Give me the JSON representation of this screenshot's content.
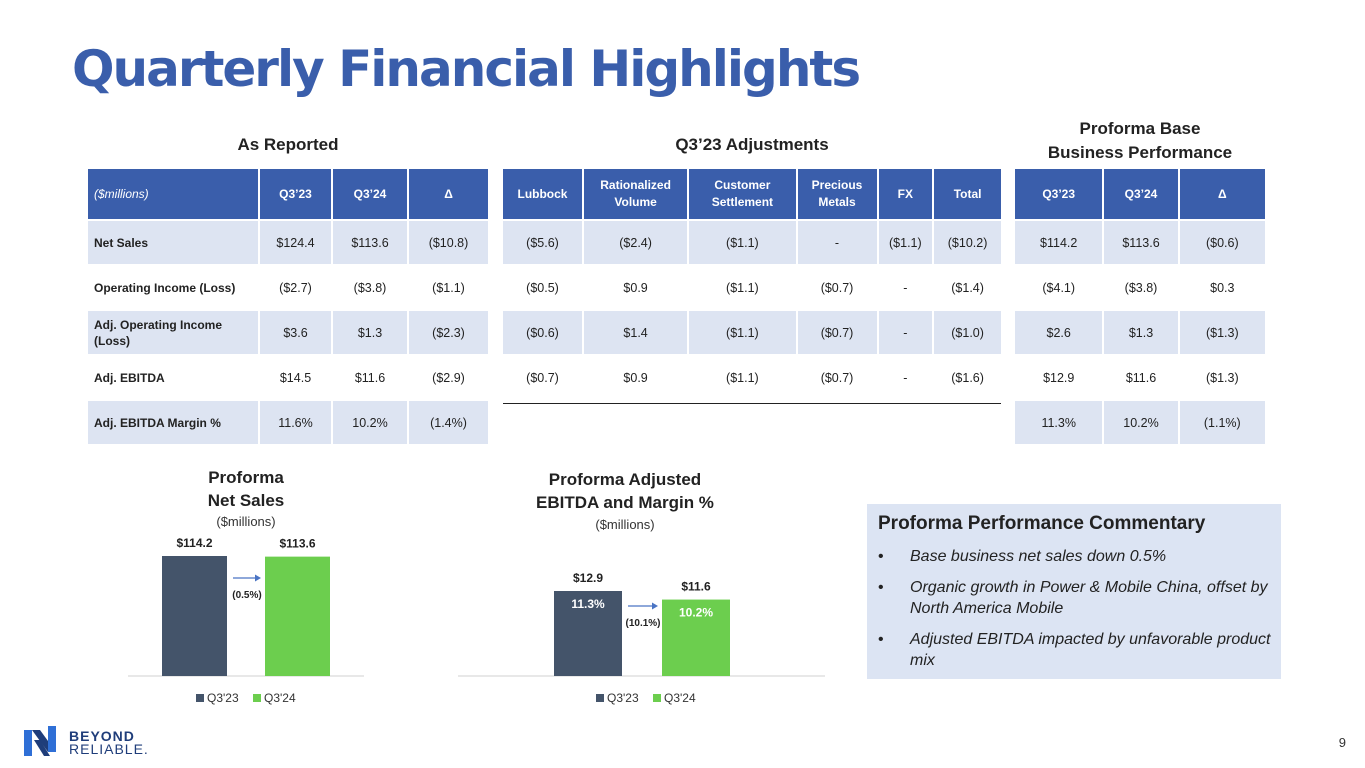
{
  "title": "Quarterly Financial Highlights",
  "as_reported": {
    "title": "As Reported",
    "headers": [
      "($millions)",
      "Q3’23",
      "Q3’24",
      "Δ"
    ],
    "rows": [
      {
        "label": "Net Sales",
        "q323": "$124.4",
        "q324": "$113.6",
        "delta": "($10.8)"
      },
      {
        "label": "Operating Income (Loss)",
        "q323": "($2.7)",
        "q324": "($3.8)",
        "delta": "($1.1)"
      },
      {
        "label": "Adj. Operating Income (Loss)",
        "q323": "$3.6",
        "q324": "$1.3",
        "delta": "($2.3)"
      },
      {
        "label": "Adj. EBITDA",
        "q323": "$14.5",
        "q324": "$11.6",
        "delta": "($2.9)"
      },
      {
        "label": "Adj. EBITDA Margin %",
        "q323": "11.6%",
        "q324": "10.2%",
        "delta": "(1.4%)"
      }
    ]
  },
  "adjustments": {
    "title": "Q3’23 Adjustments",
    "headers": [
      "Lubbock",
      "Rationalized Volume",
      "Customer Settlement",
      "Precious Metals",
      "FX",
      "Total"
    ],
    "rows": [
      [
        "($5.6)",
        "($2.4)",
        "($1.1)",
        "-",
        "($1.1)",
        "($10.2)"
      ],
      [
        "($0.5)",
        "$0.9",
        "($1.1)",
        "($0.7)",
        "-",
        "($1.4)"
      ],
      [
        "($0.6)",
        "$1.4",
        "($1.1)",
        "($0.7)",
        "-",
        "($1.0)"
      ],
      [
        "($0.7)",
        "$0.9",
        "($1.1)",
        "($0.7)",
        "-",
        "($1.6)"
      ]
    ]
  },
  "proforma": {
    "title_line1": "Proforma Base",
    "title_line2": "Business Performance",
    "headers": [
      "Q3’23",
      "Q3’24",
      "Δ"
    ],
    "rows": [
      [
        "$114.2",
        "$113.6",
        "($0.6)"
      ],
      [
        "($4.1)",
        "($3.8)",
        "$0.3"
      ],
      [
        "$2.6",
        "$1.3",
        "($1.3)"
      ],
      [
        "$12.9",
        "$11.6",
        "($1.3)"
      ],
      [
        "11.3%",
        "10.2%",
        "(1.1%)"
      ]
    ]
  },
  "chart1": {
    "title_line1": "Proforma",
    "title_line2": "Net Sales",
    "subtitle": "($millions)"
  },
  "chart2": {
    "title_line1": "Proforma Adjusted",
    "title_line2": "EBITDA and Margin %",
    "subtitle": "($millions)"
  },
  "colors": {
    "q323": "#44546a",
    "q324": "#6cce4e",
    "header": "#3a5eab",
    "arrow": "#4a74c4"
  },
  "chart_data": [
    {
      "type": "bar",
      "categories": [
        ""
      ],
      "series": [
        {
          "name": "Q3'23",
          "values": [
            114.2
          ],
          "labels": [
            "$114.2"
          ]
        },
        {
          "name": "Q3'24",
          "values": [
            113.6
          ],
          "labels": [
            "$113.6"
          ]
        }
      ],
      "annotation": "(0.5%)",
      "ylim": [
        0,
        114.2
      ],
      "legend": "bottom"
    },
    {
      "type": "bar",
      "categories": [
        ""
      ],
      "series": [
        {
          "name": "Q3'23",
          "values": [
            12.9
          ],
          "labels": [
            "$12.9"
          ],
          "inner_labels": [
            "11.3%"
          ]
        },
        {
          "name": "Q3'24",
          "values": [
            11.6
          ],
          "labels": [
            "$11.6"
          ],
          "inner_labels": [
            "10.2%"
          ]
        }
      ],
      "annotation": "(10.1%)",
      "ylim": [
        0,
        12.9
      ],
      "legend": "bottom"
    }
  ],
  "commentary": {
    "title": "Proforma Performance Commentary",
    "bullet": "•",
    "items": [
      "Base business net sales down 0.5%",
      "Organic growth in Power & Mobile China, offset by North America Mobile",
      "Adjusted EBITDA impacted by unfavorable product mix"
    ]
  },
  "logo": {
    "line1": "BEYOND",
    "line2": "RELIABLE."
  },
  "page_number": "9"
}
